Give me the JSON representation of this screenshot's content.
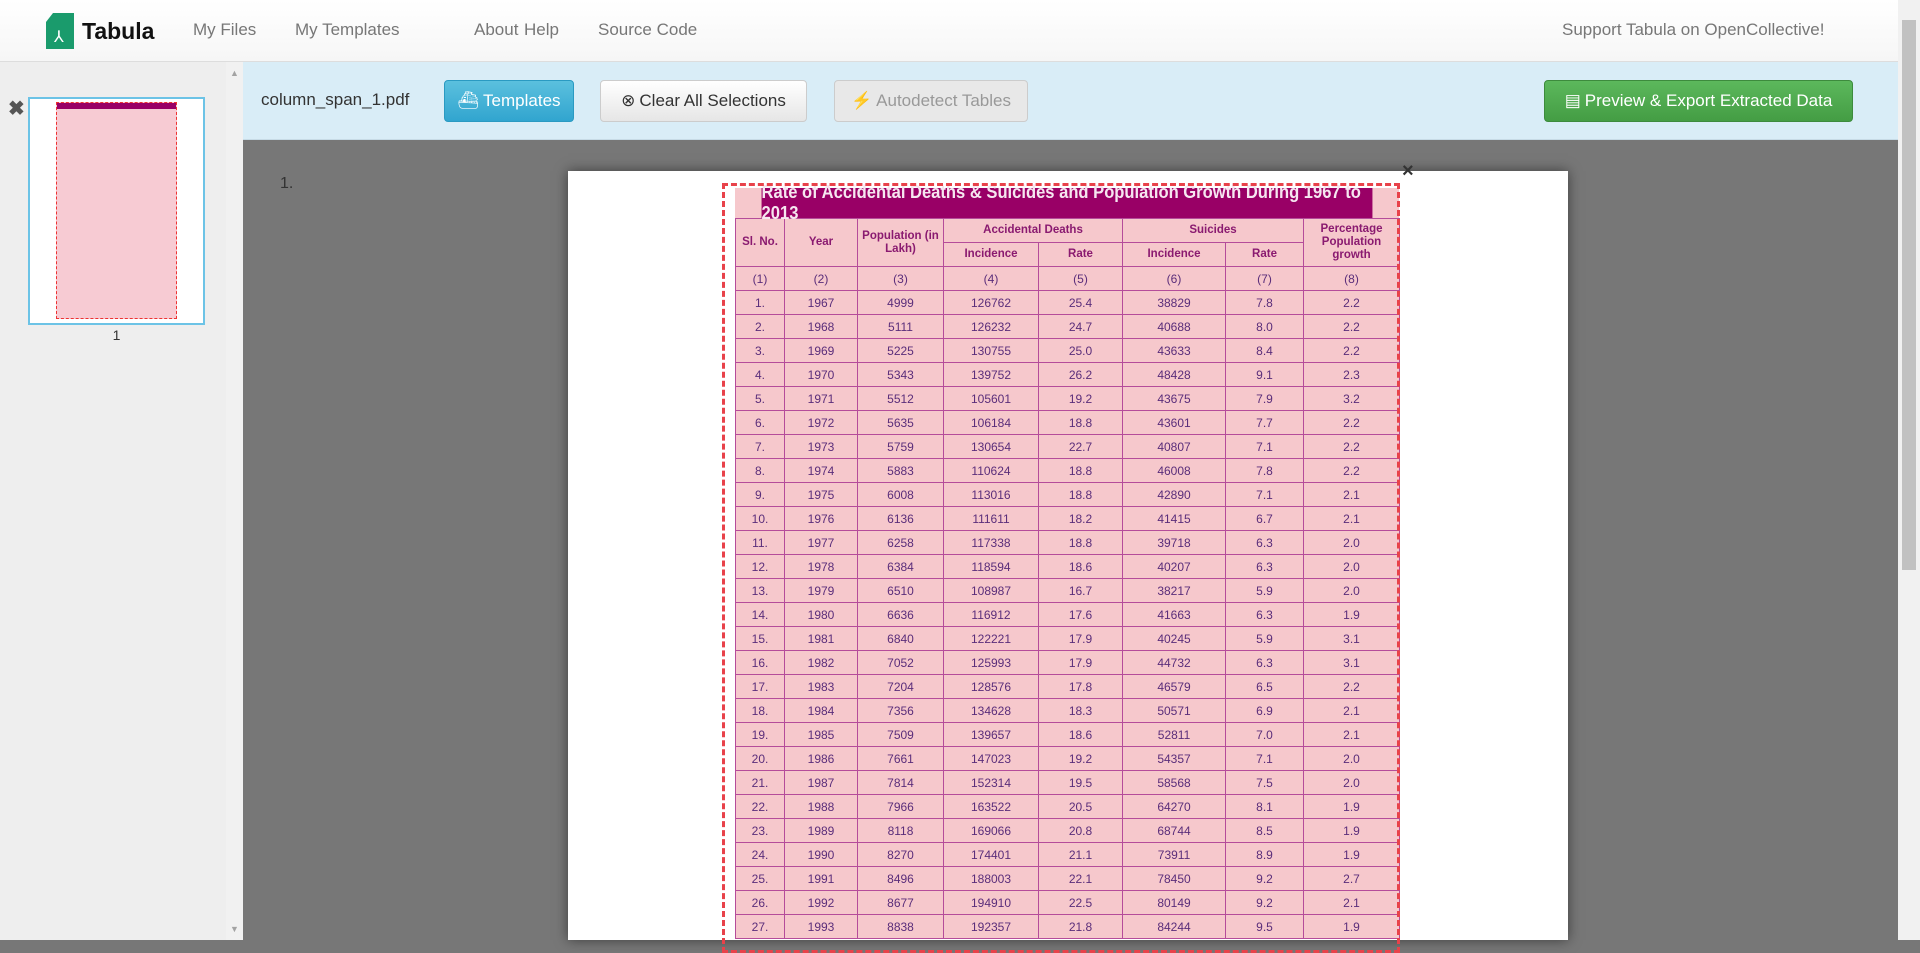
{
  "nav": {
    "brand": "Tabula",
    "items": [
      "My Files",
      "My Templates",
      "About",
      "Help",
      "Source Code"
    ],
    "support": "Support Tabula on OpenCollective!"
  },
  "sidebar": {
    "page_label": "1"
  },
  "toolbar": {
    "filename": "column_span_1.pdf",
    "templates": "Templates",
    "clear": "Clear All Selections",
    "autodetect": "Autodetect Tables",
    "preview": "Preview & Export Extracted Data"
  },
  "page": {
    "number": "1."
  },
  "colors": {
    "accent_blue": "#5bc0de",
    "green": "#5cb85c",
    "table_title": "#990066",
    "selection": "#e8424a"
  },
  "table": {
    "title": "Rate of Accidental Deaths & Suicides and Population Growth During 1967 to 2013",
    "headers": {
      "sl": "Sl. No.",
      "year": "Year",
      "pop": "Population (in Lakh)",
      "acc": "Accidental Deaths",
      "sui": "Suicides",
      "inc": "Incidence",
      "rate": "Rate",
      "pct": "Percentage Population growth"
    },
    "col_nums": [
      "(1)",
      "(2)",
      "(3)",
      "(4)",
      "(5)",
      "(6)",
      "(7)",
      "(8)"
    ],
    "rows": [
      [
        "1.",
        "1967",
        "4999",
        "126762",
        "25.4",
        "38829",
        "7.8",
        "2.2"
      ],
      [
        "2.",
        "1968",
        "5111",
        "126232",
        "24.7",
        "40688",
        "8.0",
        "2.2"
      ],
      [
        "3.",
        "1969",
        "5225",
        "130755",
        "25.0",
        "43633",
        "8.4",
        "2.2"
      ],
      [
        "4.",
        "1970",
        "5343",
        "139752",
        "26.2",
        "48428",
        "9.1",
        "2.3"
      ],
      [
        "5.",
        "1971",
        "5512",
        "105601",
        "19.2",
        "43675",
        "7.9",
        "3.2"
      ],
      [
        "6.",
        "1972",
        "5635",
        "106184",
        "18.8",
        "43601",
        "7.7",
        "2.2"
      ],
      [
        "7.",
        "1973",
        "5759",
        "130654",
        "22.7",
        "40807",
        "7.1",
        "2.2"
      ],
      [
        "8.",
        "1974",
        "5883",
        "110624",
        "18.8",
        "46008",
        "7.8",
        "2.2"
      ],
      [
        "9.",
        "1975",
        "6008",
        "113016",
        "18.8",
        "42890",
        "7.1",
        "2.1"
      ],
      [
        "10.",
        "1976",
        "6136",
        "111611",
        "18.2",
        "41415",
        "6.7",
        "2.1"
      ],
      [
        "11.",
        "1977",
        "6258",
        "117338",
        "18.8",
        "39718",
        "6.3",
        "2.0"
      ],
      [
        "12.",
        "1978",
        "6384",
        "118594",
        "18.6",
        "40207",
        "6.3",
        "2.0"
      ],
      [
        "13.",
        "1979",
        "6510",
        "108987",
        "16.7",
        "38217",
        "5.9",
        "2.0"
      ],
      [
        "14.",
        "1980",
        "6636",
        "116912",
        "17.6",
        "41663",
        "6.3",
        "1.9"
      ],
      [
        "15.",
        "1981",
        "6840",
        "122221",
        "17.9",
        "40245",
        "5.9",
        "3.1"
      ],
      [
        "16.",
        "1982",
        "7052",
        "125993",
        "17.9",
        "44732",
        "6.3",
        "3.1"
      ],
      [
        "17.",
        "1983",
        "7204",
        "128576",
        "17.8",
        "46579",
        "6.5",
        "2.2"
      ],
      [
        "18.",
        "1984",
        "7356",
        "134628",
        "18.3",
        "50571",
        "6.9",
        "2.1"
      ],
      [
        "19.",
        "1985",
        "7509",
        "139657",
        "18.6",
        "52811",
        "7.0",
        "2.1"
      ],
      [
        "20.",
        "1986",
        "7661",
        "147023",
        "19.2",
        "54357",
        "7.1",
        "2.0"
      ],
      [
        "21.",
        "1987",
        "7814",
        "152314",
        "19.5",
        "58568",
        "7.5",
        "2.0"
      ],
      [
        "22.",
        "1988",
        "7966",
        "163522",
        "20.5",
        "64270",
        "8.1",
        "1.9"
      ],
      [
        "23.",
        "1989",
        "8118",
        "169066",
        "20.8",
        "68744",
        "8.5",
        "1.9"
      ],
      [
        "24.",
        "1990",
        "8270",
        "174401",
        "21.1",
        "73911",
        "8.9",
        "1.9"
      ],
      [
        "25.",
        "1991",
        "8496",
        "188003",
        "22.1",
        "78450",
        "9.2",
        "2.7"
      ],
      [
        "26.",
        "1992",
        "8677",
        "194910",
        "22.5",
        "80149",
        "9.2",
        "2.1"
      ],
      [
        "27.",
        "1993",
        "8838",
        "192357",
        "21.8",
        "84244",
        "9.5",
        "1.9"
      ]
    ]
  }
}
